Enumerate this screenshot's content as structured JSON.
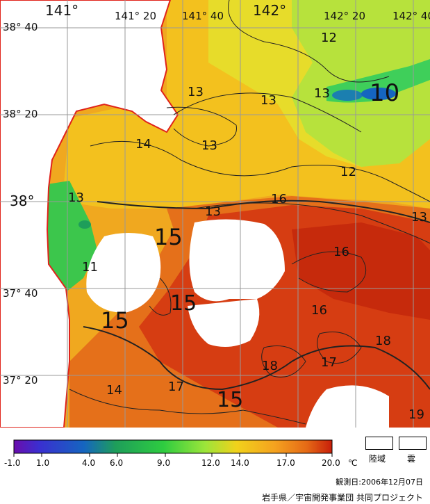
{
  "map": {
    "lon_labels": [
      "141°",
      "141° 20",
      "141° 40",
      "142°",
      "142° 20",
      "142° 40"
    ],
    "lat_labels": [
      "38° 40",
      "38° 20",
      "38°",
      "37° 40",
      "37° 20"
    ],
    "contour_labels": [
      "12",
      "13",
      "13",
      "13",
      "10",
      "13",
      "14",
      "13",
      "12",
      "13",
      "16",
      "13",
      "15",
      "16",
      "11",
      "15",
      "15",
      "16",
      "18",
      "17",
      "18",
      "14",
      "17",
      "15",
      "19"
    ]
  },
  "legend": {
    "tick_labels": [
      "-1.0",
      "1.0",
      "4.0",
      "6.0",
      "9.0",
      "12.0",
      "14.0",
      "17.0",
      "20.0"
    ],
    "unit": "℃",
    "land_label": "陸域",
    "cloud_label": "雲",
    "colors": [
      "#6a0dad",
      "#3a2fd0",
      "#1565c0",
      "#1e9e5a",
      "#2ecc40",
      "#9be53a",
      "#f1d21b",
      "#f5a21f",
      "#e56a16",
      "#c81e0a"
    ]
  },
  "footer": {
    "observation_date": "観測日:2006年12月07日",
    "credit": "岩手県／宇宙開発事業団 共同プロジェクト"
  }
}
